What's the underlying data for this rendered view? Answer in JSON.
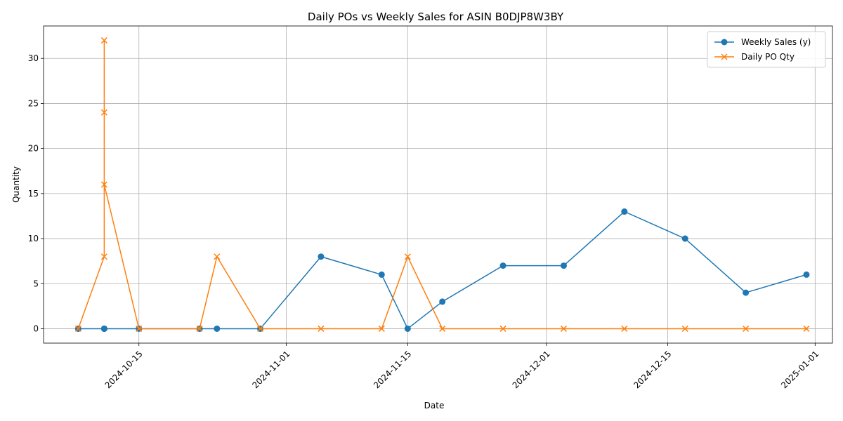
{
  "chart_data": {
    "type": "line",
    "title": "Daily POs vs Weekly Sales for ASIN B0DJP8W3BY",
    "xlabel": "Date",
    "ylabel": "Quantity",
    "x_axis_type": "date",
    "xlim": [
      "2024-10-04",
      "2025-01-03"
    ],
    "ylim": [
      -1.6,
      33.6
    ],
    "x_ticks": [
      "2024-10-15",
      "2024-11-01",
      "2024-11-15",
      "2024-12-01",
      "2024-12-15",
      "2025-01-01"
    ],
    "y_ticks": [
      0,
      5,
      10,
      15,
      20,
      25,
      30
    ],
    "grid": true,
    "legend_position": "top-right",
    "series": [
      {
        "name": "Weekly Sales (y)",
        "color": "#1f77b4",
        "marker": "circle",
        "points": [
          {
            "x": "2024-10-08",
            "y": 0
          },
          {
            "x": "2024-10-11",
            "y": 0
          },
          {
            "x": "2024-10-11",
            "y": 0
          },
          {
            "x": "2024-10-11",
            "y": 0
          },
          {
            "x": "2024-10-11",
            "y": 0
          },
          {
            "x": "2024-10-15",
            "y": 0
          },
          {
            "x": "2024-10-22",
            "y": 0
          },
          {
            "x": "2024-10-24",
            "y": 0
          },
          {
            "x": "2024-10-29",
            "y": 0
          },
          {
            "x": "2024-11-05",
            "y": 8
          },
          {
            "x": "2024-11-12",
            "y": 6
          },
          {
            "x": "2024-11-15",
            "y": 0
          },
          {
            "x": "2024-11-19",
            "y": 3
          },
          {
            "x": "2024-11-26",
            "y": 7
          },
          {
            "x": "2024-12-03",
            "y": 7
          },
          {
            "x": "2024-12-10",
            "y": 13
          },
          {
            "x": "2024-12-17",
            "y": 10
          },
          {
            "x": "2024-12-24",
            "y": 4
          },
          {
            "x": "2024-12-31",
            "y": 6
          }
        ]
      },
      {
        "name": "Daily PO Qty",
        "color": "#ff7f0e",
        "marker": "x",
        "points": [
          {
            "x": "2024-10-08",
            "y": 0
          },
          {
            "x": "2024-10-11",
            "y": 8
          },
          {
            "x": "2024-10-11",
            "y": 32
          },
          {
            "x": "2024-10-11",
            "y": 24
          },
          {
            "x": "2024-10-11",
            "y": 16
          },
          {
            "x": "2024-10-15",
            "y": 0
          },
          {
            "x": "2024-10-22",
            "y": 0
          },
          {
            "x": "2024-10-24",
            "y": 8
          },
          {
            "x": "2024-10-29",
            "y": 0
          },
          {
            "x": "2024-11-05",
            "y": 0
          },
          {
            "x": "2024-11-12",
            "y": 0
          },
          {
            "x": "2024-11-15",
            "y": 8
          },
          {
            "x": "2024-11-19",
            "y": 0
          },
          {
            "x": "2024-11-26",
            "y": 0
          },
          {
            "x": "2024-12-03",
            "y": 0
          },
          {
            "x": "2024-12-10",
            "y": 0
          },
          {
            "x": "2024-12-17",
            "y": 0
          },
          {
            "x": "2024-12-24",
            "y": 0
          },
          {
            "x": "2024-12-31",
            "y": 0
          }
        ]
      }
    ]
  }
}
